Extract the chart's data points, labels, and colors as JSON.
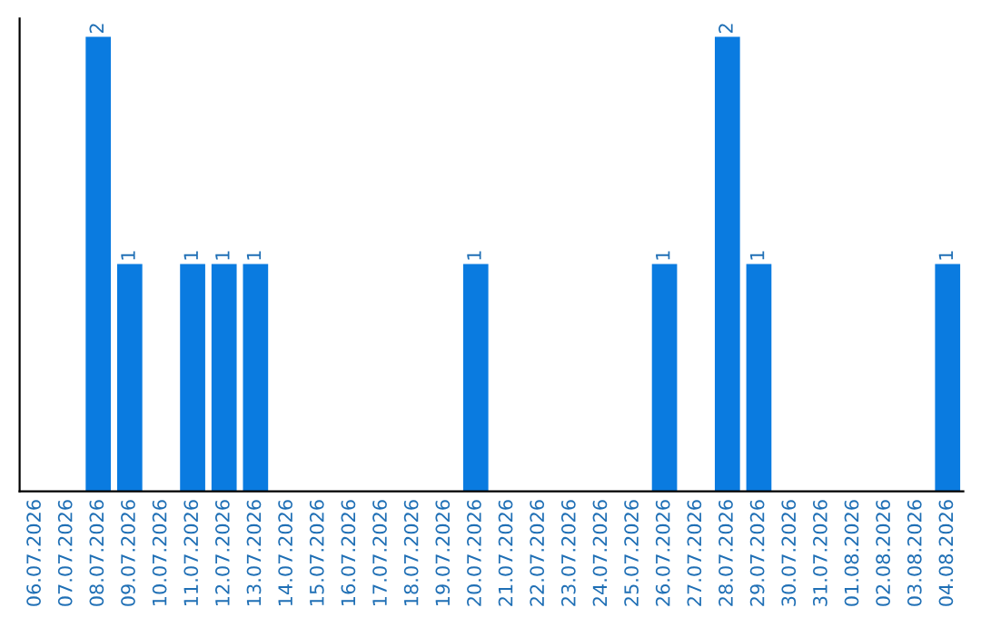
{
  "chart_data": {
    "type": "bar",
    "categories": [
      "06.07.2026",
      "07.07.2026",
      "08.07.2026",
      "09.07.2026",
      "10.07.2026",
      "11.07.2026",
      "12.07.2026",
      "13.07.2026",
      "14.07.2026",
      "15.07.2026",
      "16.07.2026",
      "17.07.2026",
      "18.07.2026",
      "19.07.2026",
      "20.07.2026",
      "21.07.2026",
      "22.07.2026",
      "23.07.2026",
      "24.07.2026",
      "25.07.2026",
      "26.07.2026",
      "27.07.2026",
      "28.07.2026",
      "29.07.2026",
      "30.07.2026",
      "31.07.2026",
      "01.08.2026",
      "02.08.2026",
      "03.08.2026",
      "04.08.2026"
    ],
    "values": [
      0,
      0,
      2,
      1,
      0,
      1,
      1,
      1,
      0,
      0,
      0,
      0,
      0,
      0,
      1,
      0,
      0,
      0,
      0,
      0,
      1,
      0,
      2,
      1,
      0,
      0,
      0,
      0,
      0,
      1
    ],
    "value_labels": [
      null,
      null,
      "2",
      "1",
      null,
      "1",
      "1",
      "1",
      null,
      null,
      null,
      null,
      null,
      null,
      "1",
      null,
      null,
      null,
      null,
      null,
      "1",
      null,
      "2",
      "1",
      null,
      null,
      null,
      null,
      null,
      "1"
    ],
    "color": "#0a7be0",
    "tick_labels": "x",
    "grid": false,
    "legend": false
  }
}
